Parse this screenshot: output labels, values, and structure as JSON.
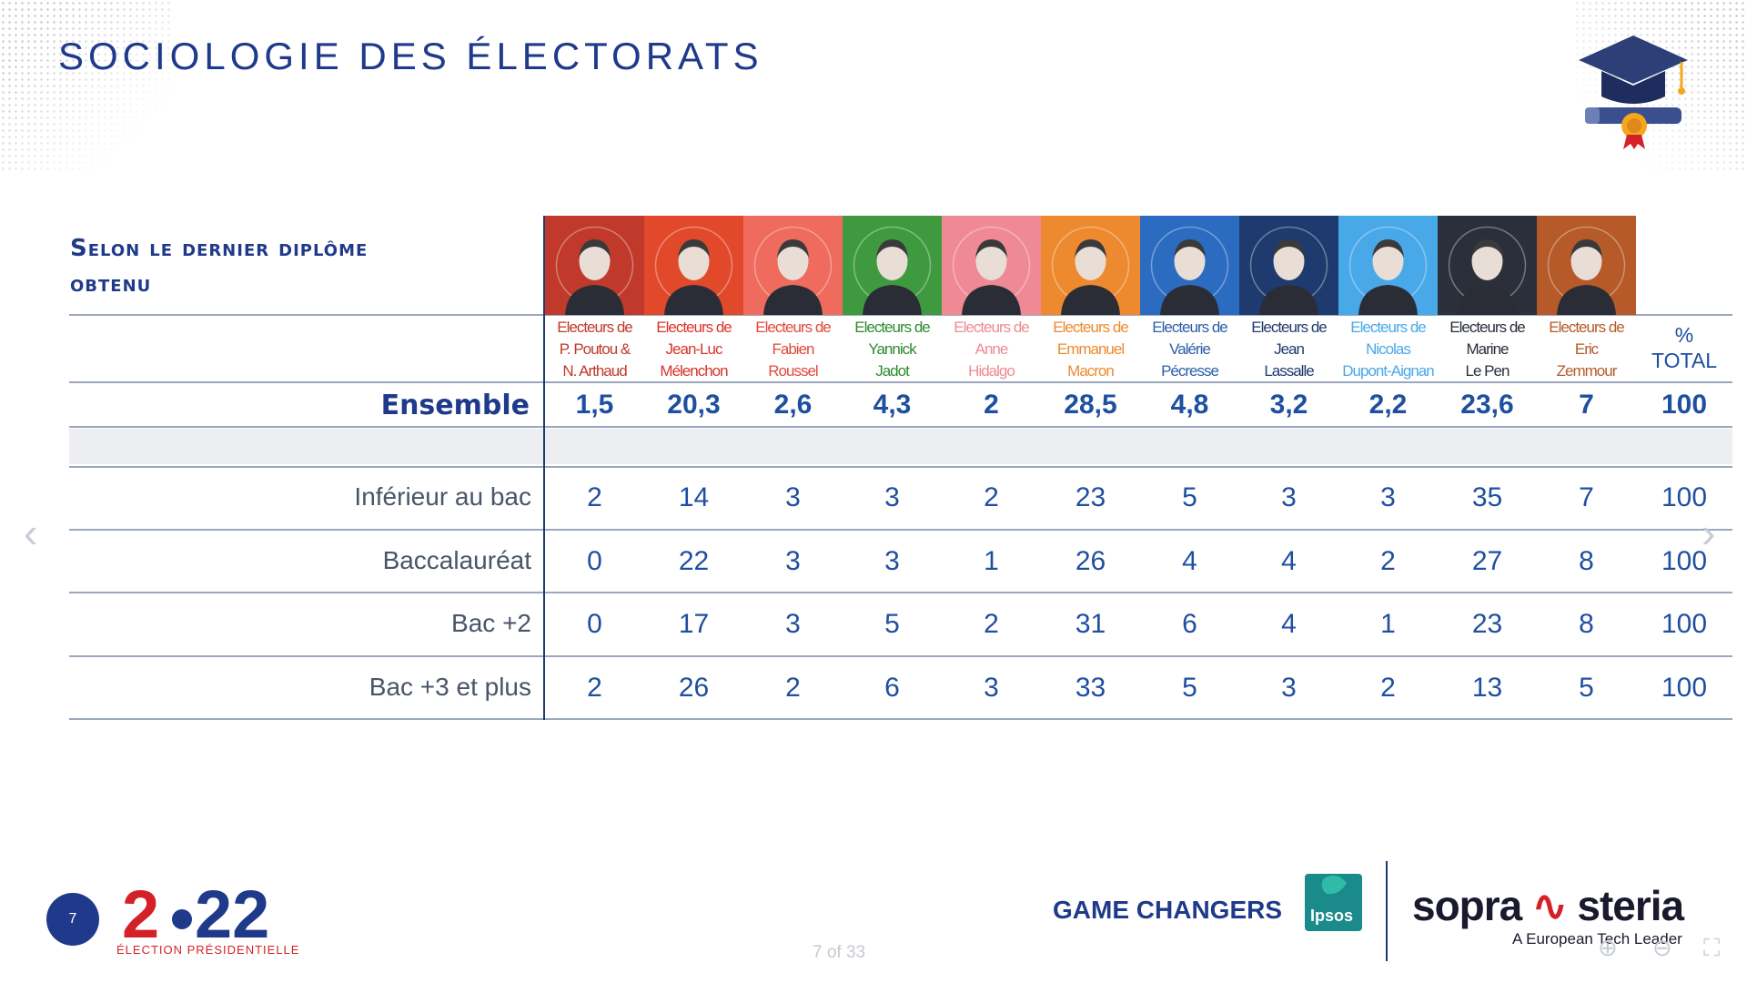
{
  "title": "SOCIOLOGIE DES ÉLECTORATS",
  "section_title_line1": "Selon le dernier diplôme",
  "section_title_line2": "obtenu",
  "total_header_line1": "%",
  "total_header_line2": "TOTAL",
  "candidates": [
    {
      "l1": "Electeurs de",
      "l2": "P. Poutou &",
      "l3": "N. Arthaud",
      "bg": "#c0392b",
      "text": "#c0392b"
    },
    {
      "l1": "Electeurs de",
      "l2": "Jean-Luc",
      "l3": "Mélenchon",
      "bg": "#e2492b",
      "text": "#d9342b"
    },
    {
      "l1": "Electeurs de",
      "l2": "Fabien",
      "l3": "Roussel",
      "bg": "#ef6b5e",
      "text": "#e04a3c"
    },
    {
      "l1": "Electeurs de",
      "l2": "Yannick",
      "l3": "Jadot",
      "bg": "#3f9a3f",
      "text": "#2f8a2f"
    },
    {
      "l1": "Electeurs de",
      "l2": "Anne",
      "l3": "Hidalgo",
      "bg": "#ef8a94",
      "text": "#ef8a94"
    },
    {
      "l1": "Electeurs de",
      "l2": "Emmanuel",
      "l3": "Macron",
      "bg": "#ed8a2f",
      "text": "#ed8a2f"
    },
    {
      "l1": "Electeurs de",
      "l2": "Valérie",
      "l3": "Pécresse",
      "bg": "#2b6cc0",
      "text": "#2b5ea8"
    },
    {
      "l1": "Electeurs de",
      "l2": "Jean",
      "l3": "Lassalle",
      "bg": "#1f3a6e",
      "text": "#1f3a6e"
    },
    {
      "l1": "Electeurs de",
      "l2": "Nicolas",
      "l3": "Dupont-Aignan",
      "bg": "#49a8e8",
      "text": "#49a8e8"
    },
    {
      "l1": "Electeurs de",
      "l2": "Marine",
      "l3": "Le Pen",
      "bg": "#2a2f3a",
      "text": "#2a2f3a"
    },
    {
      "l1": "Electeurs de",
      "l2": "Eric",
      "l3": "Zemmour",
      "bg": "#b55a28",
      "text": "#b55a28"
    }
  ],
  "ensemble": {
    "label": "Ensemble",
    "values": [
      "1,5",
      "20,3",
      "2,6",
      "4,3",
      "2",
      "28,5",
      "4,8",
      "3,2",
      "2,2",
      "23,6",
      "7"
    ],
    "total": "100"
  },
  "rows": [
    {
      "label": "Inférieur au bac",
      "values": [
        "2",
        "14",
        "3",
        "3",
        "2",
        "23",
        "5",
        "3",
        "3",
        "35",
        "7"
      ],
      "total": "100"
    },
    {
      "label": "Baccalauréat",
      "values": [
        "0",
        "22",
        "3",
        "3",
        "1",
        "26",
        "4",
        "4",
        "2",
        "27",
        "8"
      ],
      "total": "100"
    },
    {
      "label": "Bac +2",
      "values": [
        "0",
        "17",
        "3",
        "5",
        "2",
        "31",
        "6",
        "4",
        "1",
        "23",
        "8"
      ],
      "total": "100"
    },
    {
      "label": "Bac +3 et plus",
      "values": [
        "2",
        "26",
        "2",
        "6",
        "3",
        "33",
        "5",
        "3",
        "2",
        "13",
        "5"
      ],
      "total": "100"
    }
  ],
  "footer": {
    "page_number": "7",
    "election_year_a": "2",
    "election_year_b": "22",
    "election_label": "ÉLECTION PRÉSIDENTIELLE",
    "game_changers": "GAME CHANGERS",
    "ipsos": "Ipsos",
    "sopra": "sopra",
    "steria": "steria",
    "tagline": "A European Tech Leader",
    "pager": "7 of 33"
  },
  "icons": [
    "graduation-cap-icon",
    "chevron-left-icon",
    "chevron-right-icon",
    "zoom-in-icon",
    "zoom-out-icon",
    "fullscreen-icon"
  ],
  "accent": "#1f3a8a"
}
